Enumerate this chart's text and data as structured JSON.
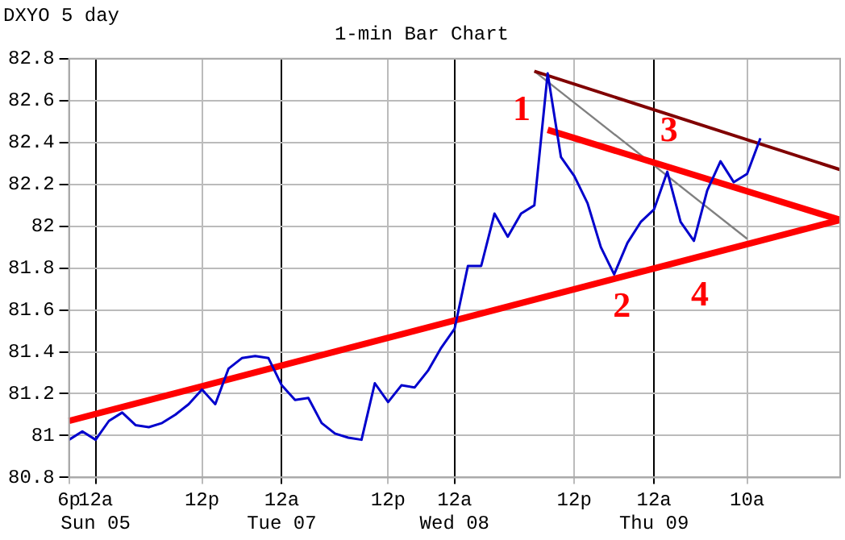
{
  "chart_data": {
    "type": "line",
    "title": "1-min Bar Chart",
    "annotations": [
      "DXYO 5 day",
      "1",
      "2",
      "3",
      "4"
    ],
    "categories": [
      "6p",
      null,
      "12a\nSun 05",
      null,
      null,
      null,
      null,
      null,
      null,
      null,
      "12p",
      null,
      null,
      null,
      null,
      null,
      "12a\nTue 07",
      null,
      null,
      null,
      null,
      null,
      null,
      null,
      "12p",
      null,
      null,
      null,
      null,
      "12a\nWed 08",
      null,
      null,
      null,
      null,
      null,
      null,
      null,
      null,
      "12p",
      null,
      null,
      null,
      null,
      null,
      "12a\nThu 09",
      null,
      null,
      null,
      null,
      null,
      null,
      "10a",
      null,
      null,
      null,
      null,
      null,
      null,
      null
    ],
    "ylim": [
      80.8,
      82.8
    ],
    "yticks": [
      80.8,
      81,
      81.2,
      81.4,
      81.6,
      81.8,
      82,
      82.2,
      82.4,
      82.6,
      82.8
    ],
    "grid": true,
    "marker": "none",
    "legend": false,
    "series": [
      {
        "color": "#0000cc",
        "values": [
          80.98,
          81.02,
          80.98,
          81.07,
          81.11,
          81.05,
          81.04,
          81.06,
          81.1,
          81.15,
          81.22,
          81.15,
          81.32,
          81.37,
          81.38,
          81.37,
          81.24,
          81.17,
          81.18,
          81.06,
          81.01,
          80.99,
          80.98,
          81.25,
          81.16,
          81.24,
          81.23,
          81.31,
          81.42,
          81.51,
          81.81,
          81.81,
          82.06,
          81.95,
          82.06,
          82.1,
          82.73,
          82.33,
          82.24,
          82.11,
          81.9,
          81.77,
          81.92,
          82.02,
          82.08,
          82.26,
          82.02,
          81.93,
          82.17,
          82.31,
          82.21,
          82.25,
          82.42,
          null,
          null,
          null,
          null,
          null,
          null
        ]
      },
      {
        "color": "#ff0000",
        "values": [
          81.07,
          null,
          null,
          null,
          null,
          null,
          null,
          null,
          null,
          null,
          null,
          null,
          null,
          null,
          null,
          null,
          null,
          null,
          null,
          null,
          null,
          null,
          null,
          null,
          null,
          null,
          null,
          null,
          null,
          null,
          null,
          null,
          null,
          null,
          null,
          null,
          null,
          null,
          null,
          null,
          null,
          null,
          null,
          null,
          null,
          null,
          null,
          null,
          null,
          null,
          null,
          null,
          null,
          null,
          null,
          null,
          null,
          null,
          82.03
        ]
      },
      {
        "color": "#ff0000",
        "values": [
          null,
          null,
          null,
          null,
          null,
          null,
          null,
          null,
          null,
          null,
          null,
          null,
          null,
          null,
          null,
          null,
          null,
          null,
          null,
          null,
          null,
          null,
          null,
          null,
          null,
          null,
          null,
          null,
          null,
          null,
          null,
          null,
          null,
          null,
          null,
          null,
          82.46,
          null,
          null,
          null,
          null,
          null,
          null,
          null,
          null,
          null,
          null,
          null,
          null,
          null,
          null,
          null,
          null,
          null,
          null,
          null,
          null,
          null,
          82.03
        ]
      },
      {
        "color": "#800000",
        "values": [
          null,
          null,
          null,
          null,
          null,
          null,
          null,
          null,
          null,
          null,
          null,
          null,
          null,
          null,
          null,
          null,
          null,
          null,
          null,
          null,
          null,
          null,
          null,
          null,
          null,
          null,
          null,
          null,
          null,
          null,
          null,
          null,
          null,
          null,
          null,
          82.74,
          null,
          null,
          null,
          null,
          null,
          null,
          null,
          null,
          null,
          null,
          null,
          null,
          null,
          null,
          null,
          null,
          null,
          null,
          null,
          null,
          null,
          null,
          82.27
        ]
      },
      {
        "color": "#808080",
        "values": [
          null,
          null,
          null,
          null,
          null,
          null,
          null,
          null,
          null,
          null,
          null,
          null,
          null,
          null,
          null,
          null,
          null,
          null,
          null,
          null,
          null,
          null,
          null,
          null,
          null,
          null,
          null,
          null,
          null,
          null,
          null,
          null,
          null,
          null,
          null,
          82.74,
          null,
          null,
          null,
          null,
          null,
          null,
          null,
          null,
          null,
          null,
          null,
          null,
          null,
          null,
          null,
          81.94,
          null,
          null,
          null,
          null,
          null,
          null,
          null
        ]
      }
    ]
  }
}
